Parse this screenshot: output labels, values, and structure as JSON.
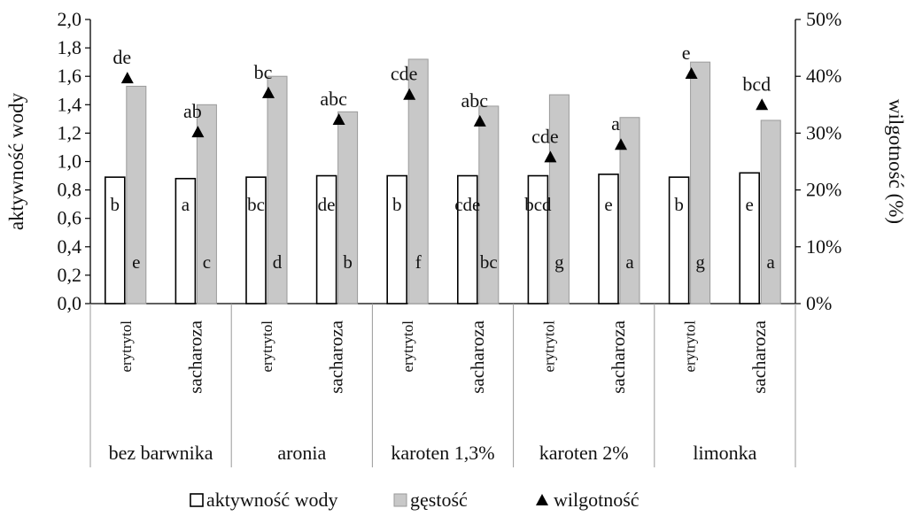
{
  "chart_data": {
    "type": "bar",
    "y_left": {
      "label": "aktywność wody",
      "ylim": [
        0,
        2
      ],
      "ticks": [
        "0,0",
        "0,2",
        "0,4",
        "0,6",
        "0,8",
        "1,0",
        "1,2",
        "1,4",
        "1,6",
        "1,8",
        "2,0"
      ]
    },
    "y_right": {
      "label": "wilgotność (%)",
      "ylim": [
        0,
        50
      ],
      "ticks": [
        "0%",
        "10%",
        "20%",
        "30%",
        "40%",
        "50%"
      ]
    },
    "groups": [
      "bez barwnika",
      "aronia",
      "karoten 1,3%",
      "karoten 2%",
      "limonka"
    ],
    "subcategories": [
      "erytrytol",
      "sacharoza",
      "erytrytol",
      "sacharoza",
      "erytrytol",
      "sacharoza",
      "erytrytol",
      "sacharoza",
      "erytrytol",
      "sacharoza"
    ],
    "series": [
      {
        "name": "aktywność wody",
        "axis": "left",
        "color": "#ffffff",
        "values": [
          0.89,
          0.88,
          0.89,
          0.9,
          0.9,
          0.9,
          0.9,
          0.91,
          0.89,
          0.92
        ],
        "labels": [
          "b",
          "a",
          "bc",
          "de",
          "b",
          "cde",
          "bcd",
          "e",
          "b",
          "e"
        ]
      },
      {
        "name": "gęstość",
        "axis": "left",
        "color": "#c8c8c8",
        "values": [
          1.53,
          1.4,
          1.6,
          1.35,
          1.72,
          1.39,
          1.47,
          1.31,
          1.7,
          1.29
        ],
        "labels": [
          "e",
          "c",
          "d",
          "b",
          "f",
          "bc",
          "g",
          "a",
          "g",
          "a"
        ]
      },
      {
        "name": "wilgotność",
        "axis": "right",
        "color": "#000000",
        "marker": "triangle",
        "values": [
          39.7,
          30.2,
          37.1,
          32.4,
          36.8,
          32.1,
          25.8,
          28.0,
          40.5,
          35.0
        ],
        "labels": [
          "de",
          "ab",
          "bc",
          "abc",
          "cde",
          "abc",
          "cde",
          "a",
          "e",
          "bcd"
        ]
      }
    ],
    "legend": {
      "position": "bottom",
      "entries": [
        "aktywność wody",
        "gęstość",
        "wilgotność"
      ]
    },
    "grid": false
  }
}
